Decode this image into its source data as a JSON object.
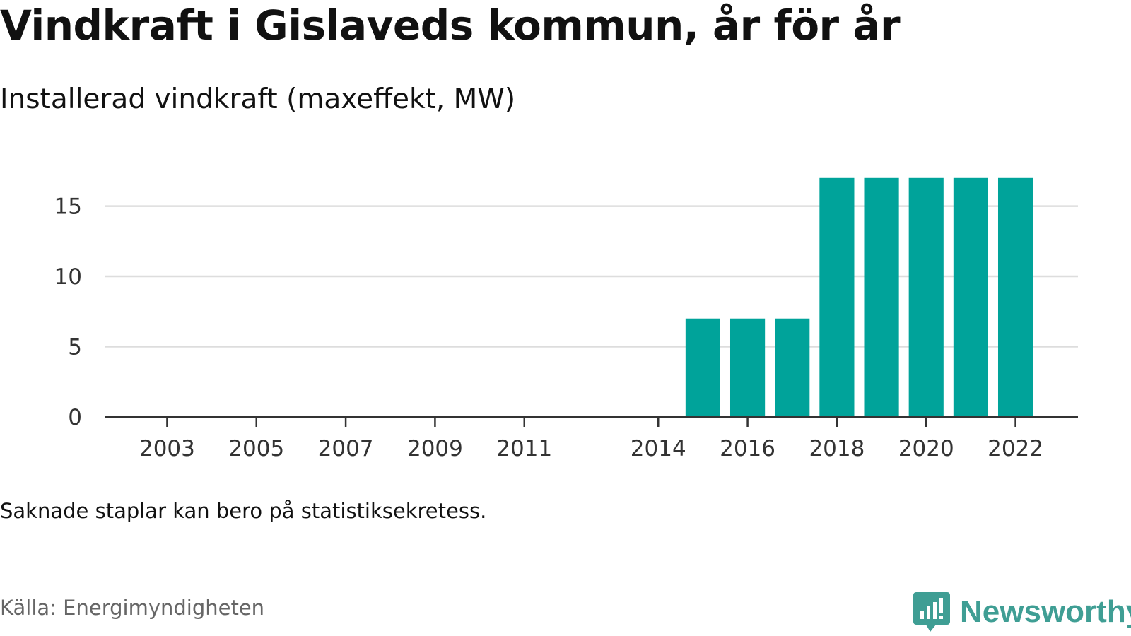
{
  "title": "Vindkraft i Gislaveds kommun, år för år",
  "subtitle": "Installerad vindkraft (maxeffekt, MW)",
  "note": "Saknade staplar kan bero på statistiksekretess.",
  "source": "Källa: Energimyndigheten",
  "brand": {
    "name": "Newsworthy",
    "icon": "newsworthy-logo-icon",
    "color": "#3f9e94"
  },
  "colors": {
    "bar": "#00a39a",
    "grid": "#dddddd",
    "axis": "#333333"
  },
  "chart_data": {
    "type": "bar",
    "x": [
      2015,
      2016,
      2017,
      2018,
      2019,
      2020,
      2021,
      2022
    ],
    "values": [
      7,
      7,
      7,
      17,
      17,
      17,
      17,
      17
    ],
    "xlim": [
      2001.6,
      2023.4
    ],
    "ylim": [
      0,
      19
    ],
    "xticks": [
      2003,
      2005,
      2007,
      2009,
      2011,
      2014,
      2016,
      2018,
      2020,
      2022
    ],
    "yticks": [
      0,
      5,
      10,
      15
    ],
    "grid": true,
    "xlabel": "",
    "ylabel": ""
  }
}
